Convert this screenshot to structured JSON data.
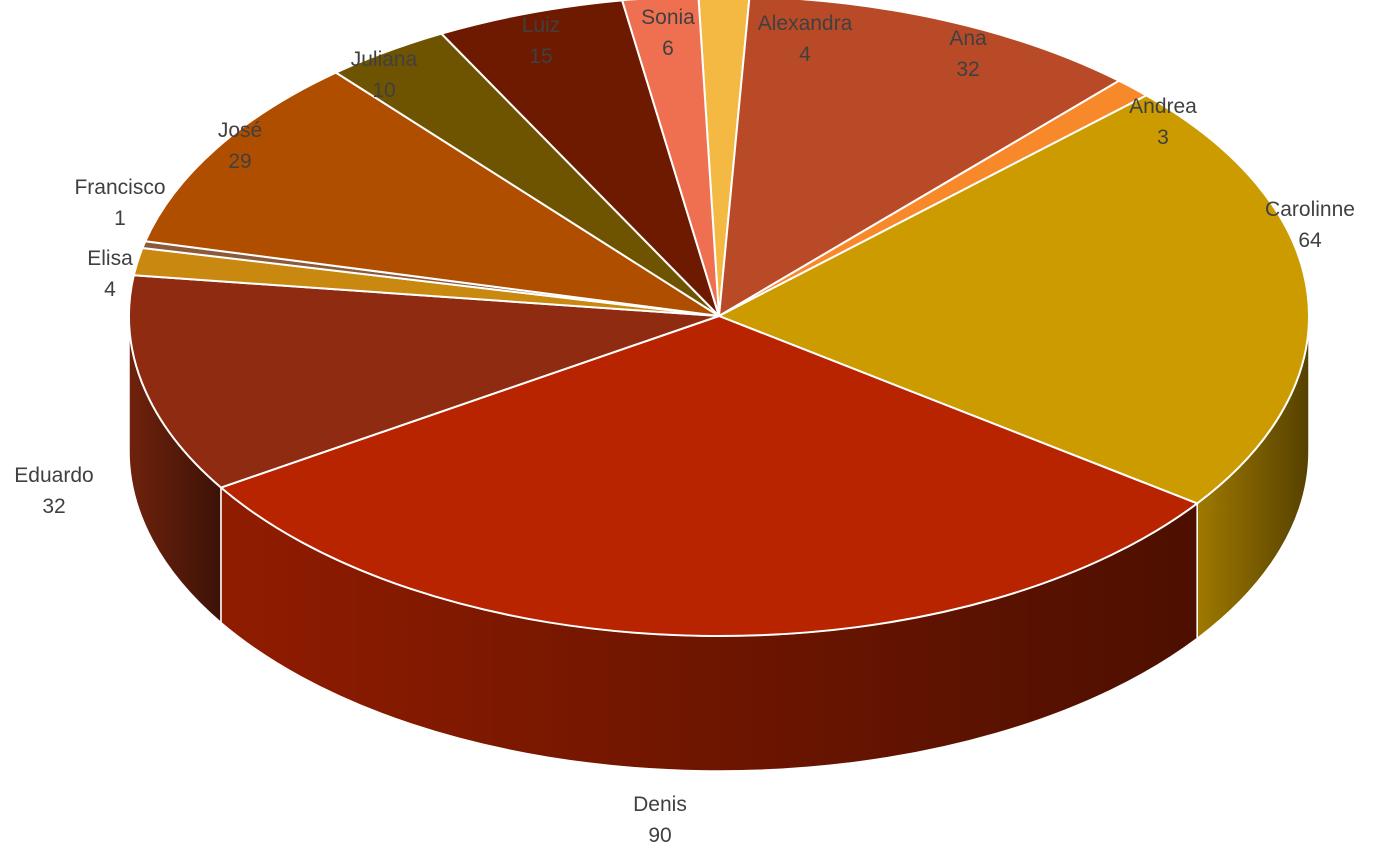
{
  "chart_data": {
    "type": "pie",
    "title": "",
    "three_d": true,
    "legend": "none",
    "slices": [
      {
        "label": "Alexandra",
        "value": 4,
        "color": "#F4B942"
      },
      {
        "label": "Ana",
        "value": 32,
        "color": "#B84A28"
      },
      {
        "label": "Andrea",
        "value": 3,
        "color": "#F7892A"
      },
      {
        "label": "Carolinne",
        "value": 64,
        "color": "#CC9B00"
      },
      {
        "label": "Denis",
        "value": 90,
        "color": "#B82400"
      },
      {
        "label": "Eduardo",
        "value": 32,
        "color": "#8E2B10"
      },
      {
        "label": "Elisa",
        "value": 4,
        "color": "#C98810"
      },
      {
        "label": "Francisco",
        "value": 1,
        "color": "#8A5A3A"
      },
      {
        "label": "José",
        "value": 29,
        "color": "#B04E00"
      },
      {
        "label": "Juliana",
        "value": 10,
        "color": "#6E5400"
      },
      {
        "label": "Luiz",
        "value": 15,
        "color": "#6E1A00"
      },
      {
        "label": "Sonia",
        "value": 6,
        "color": "#EE7050"
      }
    ]
  }
}
